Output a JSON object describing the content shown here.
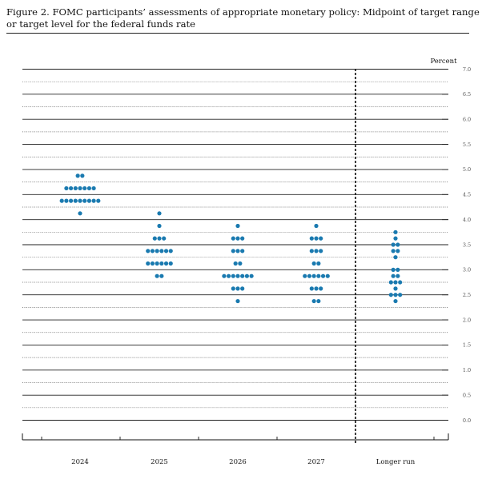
{
  "figure": {
    "title": "Figure 2.  FOMC participants’ assessments of appropriate monetary policy:  Midpoint of target range or target level for the federal funds rate"
  },
  "chart_data": {
    "type": "scatter",
    "unit_label": "Percent",
    "ylim": [
      0,
      7.0
    ],
    "y_ticks": [
      "7.0",
      "6.5",
      "6.0",
      "5.5",
      "5.0",
      "4.5",
      "4.0",
      "3.5",
      "3.0",
      "2.5",
      "2.0",
      "1.5",
      "1.0",
      "0.5",
      "0.0"
    ],
    "grid": true,
    "categories": [
      "2024",
      "2025",
      "2026",
      "2027",
      "Longer run"
    ],
    "dot_counts": [
      {
        "category": "2024",
        "points": [
          [
            4.875,
            2
          ],
          [
            4.625,
            7
          ],
          [
            4.375,
            9
          ],
          [
            4.125,
            1
          ]
        ]
      },
      {
        "category": "2025",
        "points": [
          [
            4.125,
            1
          ],
          [
            3.875,
            1
          ],
          [
            3.625,
            3
          ],
          [
            3.375,
            6
          ],
          [
            3.125,
            6
          ],
          [
            2.875,
            2
          ]
        ]
      },
      {
        "category": "2026",
        "points": [
          [
            3.875,
            1
          ],
          [
            3.625,
            3
          ],
          [
            3.375,
            3
          ],
          [
            3.125,
            2
          ],
          [
            2.875,
            7
          ],
          [
            2.625,
            3
          ],
          [
            2.375,
            1
          ]
        ]
      },
      {
        "category": "2027",
        "points": [
          [
            3.875,
            1
          ],
          [
            3.625,
            3
          ],
          [
            3.375,
            3
          ],
          [
            3.125,
            2
          ],
          [
            2.875,
            6
          ],
          [
            2.625,
            3
          ],
          [
            2.375,
            2
          ]
        ]
      },
      {
        "category": "Longer run",
        "points": [
          [
            3.75,
            1
          ],
          [
            3.625,
            1
          ],
          [
            3.5,
            2
          ],
          [
            3.375,
            2
          ],
          [
            3.25,
            1
          ],
          [
            3.0,
            2
          ],
          [
            2.875,
            2
          ],
          [
            2.75,
            3
          ],
          [
            2.625,
            1
          ],
          [
            2.5,
            3
          ],
          [
            2.375,
            1
          ]
        ]
      }
    ],
    "dot_color": "#1a7ab0",
    "divider": "dashed line before Longer run"
  }
}
